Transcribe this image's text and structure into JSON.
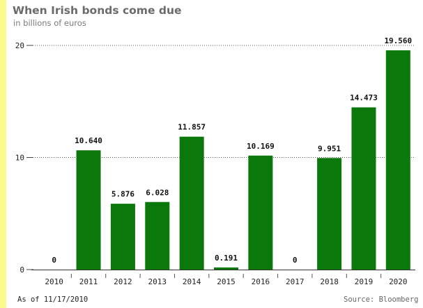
{
  "header": {
    "title": "When Irish bonds come due",
    "subtitle": "in billions of euros"
  },
  "footer": {
    "as_of": "As of 11/17/2010",
    "source": "Source: Bloomberg"
  },
  "colors": {
    "bar": "#0a780a",
    "left_strip": "#fafa8c",
    "gridline": "#555555"
  },
  "chart_data": {
    "type": "bar",
    "title": "When Irish bonds come due",
    "subtitle": "in billions of euros",
    "xlabel": "",
    "ylabel": "",
    "categories": [
      "2010",
      "2011",
      "2012",
      "2013",
      "2014",
      "2015",
      "2016",
      "2017",
      "2018",
      "2019",
      "2020"
    ],
    "values": [
      0,
      10.64,
      5.876,
      6.028,
      11.857,
      0.191,
      10.169,
      0,
      9.951,
      14.473,
      19.56
    ],
    "value_labels": [
      "0",
      "10.640",
      "5.876",
      "6.028",
      "11.857",
      "0.191",
      "10.169",
      "0",
      "9.951",
      "14.473",
      "19.560"
    ],
    "ylim": [
      0,
      20
    ],
    "yticks": [
      0,
      10,
      20
    ],
    "ytick_labels": [
      "0",
      "10",
      "20"
    ],
    "grid": "horizontal dotted",
    "legend": "none"
  }
}
